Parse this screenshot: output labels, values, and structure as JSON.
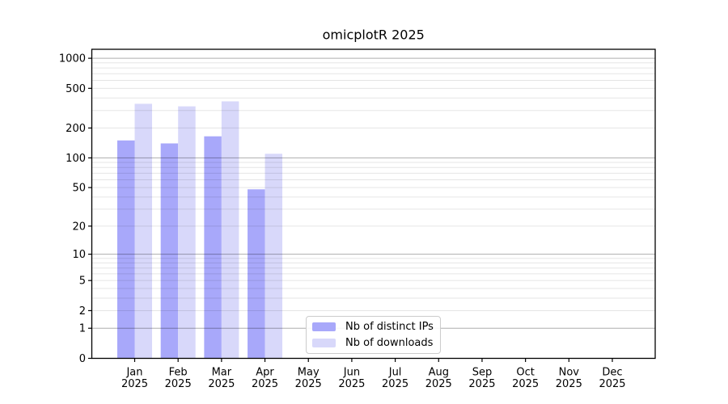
{
  "chart_data": {
    "type": "bar",
    "title": "omicplotR 2025",
    "categories": [
      "Jan\n2025",
      "Feb\n2025",
      "Mar\n2025",
      "Apr\n2025",
      "May\n2025",
      "Jun\n2025",
      "Jul\n2025",
      "Aug\n2025",
      "Sep\n2025",
      "Oct\n2025",
      "Nov\n2025",
      "Dec\n2025"
    ],
    "series": [
      {
        "name": "Nb of distinct IPs",
        "color": "#a8a8fa",
        "values": [
          150,
          140,
          165,
          48,
          0,
          0,
          0,
          0,
          0,
          0,
          0,
          0
        ]
      },
      {
        "name": "Nb of downloads",
        "color": "#d8d8fa",
        "values": [
          350,
          330,
          370,
          110,
          0,
          0,
          0,
          0,
          0,
          0,
          0,
          0
        ]
      }
    ],
    "xlabel": "",
    "ylabel": "",
    "yscale": "log1p",
    "yticks": [
      0,
      1,
      2,
      5,
      10,
      20,
      50,
      100,
      200,
      500,
      1000
    ],
    "ylim": [
      0,
      1230
    ],
    "grid": {
      "visible": true,
      "major_at": [
        1,
        10,
        100,
        1000
      ],
      "minor": "2-9 per decade"
    },
    "legend": {
      "position": "bottom-center"
    }
  }
}
